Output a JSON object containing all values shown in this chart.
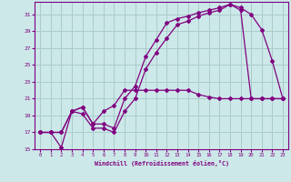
{
  "xlabel": "Windchill (Refroidissement éolien,°C)",
  "xlim_min": -0.5,
  "xlim_max": 23.5,
  "ylim_min": 15,
  "ylim_max": 32.5,
  "xticks": [
    0,
    1,
    2,
    3,
    4,
    5,
    6,
    7,
    8,
    9,
    10,
    11,
    12,
    13,
    14,
    15,
    16,
    17,
    18,
    19,
    20,
    21,
    22,
    23
  ],
  "yticks": [
    15,
    17,
    19,
    21,
    23,
    25,
    27,
    29,
    31
  ],
  "bg_color": "#cce8e8",
  "grid_color": "#aacccc",
  "line_color": "#800080",
  "line1_x": [
    0,
    1,
    2,
    3,
    4,
    5,
    6,
    7,
    8,
    9,
    10,
    11,
    12,
    13,
    14,
    15,
    16,
    17,
    18,
    19,
    20,
    21,
    22,
    23
  ],
  "line1_y": [
    17.0,
    17.0,
    15.2,
    19.5,
    19.2,
    17.5,
    17.5,
    17.0,
    19.5,
    21.0,
    24.5,
    26.5,
    28.2,
    29.8,
    30.2,
    30.8,
    31.2,
    31.5,
    32.2,
    31.8,
    31.0,
    29.2,
    25.5,
    21.0
  ],
  "line2_x": [
    0,
    1,
    2,
    3,
    4,
    5,
    6,
    7,
    8,
    9,
    10,
    11,
    12,
    13,
    14,
    15,
    16,
    17,
    18,
    19,
    20,
    21,
    22,
    23
  ],
  "line2_y": [
    17.0,
    17.0,
    17.0,
    19.5,
    20.0,
    18.0,
    19.5,
    20.2,
    22.0,
    22.0,
    22.0,
    22.0,
    22.0,
    22.0,
    22.0,
    21.5,
    21.2,
    21.0,
    21.0,
    21.0,
    21.0,
    21.0,
    21.0,
    21.0
  ],
  "line3_x": [
    0,
    1,
    2,
    3,
    4,
    5,
    6,
    7,
    8,
    9,
    10,
    11,
    12,
    13,
    14,
    15,
    16,
    17,
    18,
    19,
    20,
    21,
    22,
    23
  ],
  "line3_y": [
    17.0,
    17.0,
    17.0,
    19.5,
    20.0,
    18.0,
    18.0,
    17.5,
    21.0,
    22.5,
    26.0,
    28.0,
    30.0,
    30.5,
    30.8,
    31.2,
    31.5,
    31.8,
    32.2,
    31.5,
    21.0,
    21.0,
    21.0,
    21.0
  ]
}
